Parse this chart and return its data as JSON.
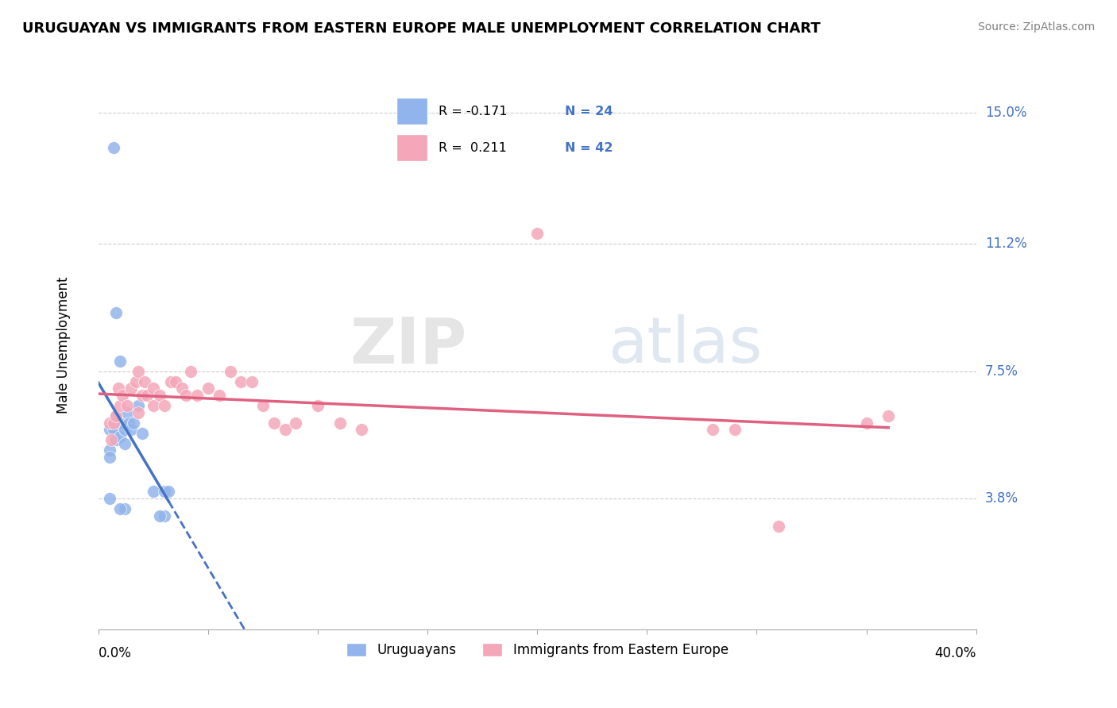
{
  "title": "URUGUAYAN VS IMMIGRANTS FROM EASTERN EUROPE MALE UNEMPLOYMENT CORRELATION CHART",
  "source": "Source: ZipAtlas.com",
  "ylabel": "Male Unemployment",
  "ytick_labels": [
    "15.0%",
    "11.2%",
    "7.5%",
    "3.8%"
  ],
  "ytick_values": [
    0.15,
    0.112,
    0.075,
    0.038
  ],
  "xmin": 0.0,
  "xmax": 0.4,
  "ymin": 0.0,
  "ymax": 0.165,
  "blue_color": "#92B4EC",
  "pink_color": "#F4A7B9",
  "blue_line_color": "#4472C4",
  "pink_line_color": "#E06080",
  "watermark_zip": "ZIP",
  "watermark_atlas": "atlas",
  "uruguayan_points": [
    [
      0.005,
      0.058
    ],
    [
      0.005,
      0.052
    ],
    [
      0.005,
      0.05
    ],
    [
      0.007,
      0.058
    ],
    [
      0.008,
      0.062
    ],
    [
      0.008,
      0.055
    ],
    [
      0.01,
      0.06
    ],
    [
      0.01,
      0.056
    ],
    [
      0.012,
      0.058
    ],
    [
      0.012,
      0.054
    ],
    [
      0.013,
      0.063
    ],
    [
      0.014,
      0.06
    ],
    [
      0.015,
      0.058
    ],
    [
      0.016,
      0.06
    ],
    [
      0.018,
      0.065
    ],
    [
      0.02,
      0.057
    ],
    [
      0.025,
      0.04
    ],
    [
      0.03,
      0.04
    ],
    [
      0.032,
      0.04
    ],
    [
      0.008,
      0.092
    ],
    [
      0.01,
      0.078
    ],
    [
      0.005,
      0.038
    ],
    [
      0.012,
      0.035
    ],
    [
      0.01,
      0.035
    ],
    [
      0.03,
      0.033
    ],
    [
      0.028,
      0.033
    ],
    [
      0.007,
      0.14
    ]
  ],
  "eastern_europe_points": [
    [
      0.005,
      0.06
    ],
    [
      0.006,
      0.055
    ],
    [
      0.007,
      0.06
    ],
    [
      0.008,
      0.062
    ],
    [
      0.009,
      0.07
    ],
    [
      0.01,
      0.065
    ],
    [
      0.011,
      0.068
    ],
    [
      0.013,
      0.065
    ],
    [
      0.015,
      0.07
    ],
    [
      0.017,
      0.072
    ],
    [
      0.018,
      0.063
    ],
    [
      0.018,
      0.075
    ],
    [
      0.02,
      0.068
    ],
    [
      0.021,
      0.072
    ],
    [
      0.022,
      0.068
    ],
    [
      0.025,
      0.07
    ],
    [
      0.025,
      0.065
    ],
    [
      0.028,
      0.068
    ],
    [
      0.03,
      0.065
    ],
    [
      0.033,
      0.072
    ],
    [
      0.035,
      0.072
    ],
    [
      0.038,
      0.07
    ],
    [
      0.04,
      0.068
    ],
    [
      0.042,
      0.075
    ],
    [
      0.045,
      0.068
    ],
    [
      0.05,
      0.07
    ],
    [
      0.055,
      0.068
    ],
    [
      0.06,
      0.075
    ],
    [
      0.065,
      0.072
    ],
    [
      0.07,
      0.072
    ],
    [
      0.075,
      0.065
    ],
    [
      0.08,
      0.06
    ],
    [
      0.085,
      0.058
    ],
    [
      0.09,
      0.06
    ],
    [
      0.1,
      0.065
    ],
    [
      0.11,
      0.06
    ],
    [
      0.12,
      0.058
    ],
    [
      0.2,
      0.115
    ],
    [
      0.28,
      0.058
    ],
    [
      0.29,
      0.058
    ],
    [
      0.31,
      0.03
    ],
    [
      0.35,
      0.06
    ],
    [
      0.36,
      0.062
    ]
  ]
}
